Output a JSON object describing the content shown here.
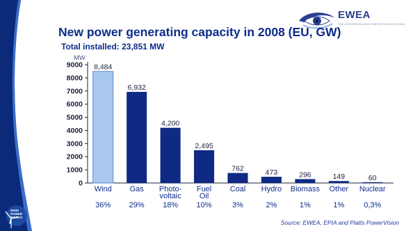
{
  "logo": {
    "name": "EWEA",
    "tagline": "THE EUROPEAN WIND ENERGY ASSOCIATION"
  },
  "side_logo": {
    "lines": [
      "WIND",
      "POWER",
      "WORKS"
    ]
  },
  "source": "Source: EWEA, EPIA and Platts PowerVision",
  "colors": {
    "title": "#0d2c8b",
    "bar": "#0e2a85",
    "bar_highlight": "#a9c8ef",
    "band": "#0b2a7a"
  },
  "chart_data": {
    "type": "bar",
    "title": "New power generating capacity in 2008 (EU, GW)",
    "subtitle": "Total installed: 23,851 MW",
    "ylabel": "MW",
    "ylim": [
      0,
      9000
    ],
    "yticks": [
      "0",
      "1000",
      "2000",
      "3000",
      "4000",
      "5000",
      "6000",
      "7000",
      "8000",
      "9000"
    ],
    "categories": [
      [
        "Wind"
      ],
      [
        "Gas"
      ],
      [
        "Photo-",
        "voltaic"
      ],
      [
        "Fuel",
        "Oil"
      ],
      [
        "Coal"
      ],
      [
        "Hydro"
      ],
      [
        "Biomass"
      ],
      [
        "Other"
      ],
      [
        "Nuclear"
      ]
    ],
    "values": [
      8484,
      6932,
      4200,
      2495,
      762,
      473,
      296,
      149,
      60
    ],
    "value_labels": [
      "8,484",
      "6,932",
      "4,200",
      "2,495",
      "762",
      "473",
      "296",
      "149",
      "60"
    ],
    "percentages": [
      "36%",
      "29%",
      "18%",
      "10%",
      "3%",
      "2%",
      "1%",
      "1%",
      "0,3%"
    ],
    "highlight_index": 0,
    "grid": false,
    "legend": "none"
  }
}
